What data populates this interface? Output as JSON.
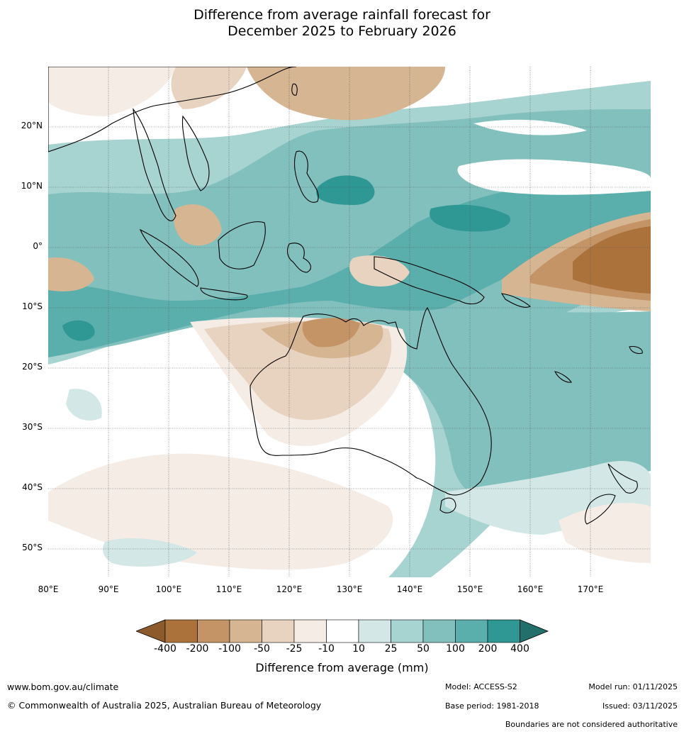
{
  "title": {
    "line1": "Difference from average rainfall forecast for",
    "line2": "December 2025 to February 2026"
  },
  "map": {
    "lon_range": [
      80,
      180
    ],
    "lat_range": [
      -55,
      30
    ],
    "lat_labels": [
      "20°N",
      "10°N",
      "0°",
      "10°S",
      "20°S",
      "30°S",
      "40°S",
      "50°S"
    ],
    "lon_labels": [
      "80°E",
      "90°E",
      "100°E",
      "110°E",
      "120°E",
      "130°E",
      "140°E",
      "150°E",
      "160°E",
      "170°E"
    ]
  },
  "legend": {
    "title": "Difference from average (mm)",
    "ticks": [
      "-400",
      "-200",
      "-100",
      "-50",
      "-25",
      "-10",
      "10",
      "25",
      "50",
      "100",
      "200",
      "400"
    ],
    "colors": [
      "#8c5a2b",
      "#ab723c",
      "#c49466",
      "#d6b593",
      "#e8d3c0",
      "#f5ece6",
      "#ffffff",
      "#d3e8e6",
      "#a7d3d1",
      "#82c0be",
      "#5aaeac",
      "#2f9894",
      "#236f6c"
    ]
  },
  "footer": {
    "website": "www.bom.gov.au/climate",
    "copyright": "© Commonwealth of Australia 2025, Australian Bureau of Meteorology",
    "model": "Model: ACCESS-S2",
    "base_period": "Base period: 1981-2018",
    "model_run": "Model run: 01/11/2025",
    "issued": "Issued: 03/11/2025",
    "disclaimer": "Boundaries are not considered authoritative"
  }
}
